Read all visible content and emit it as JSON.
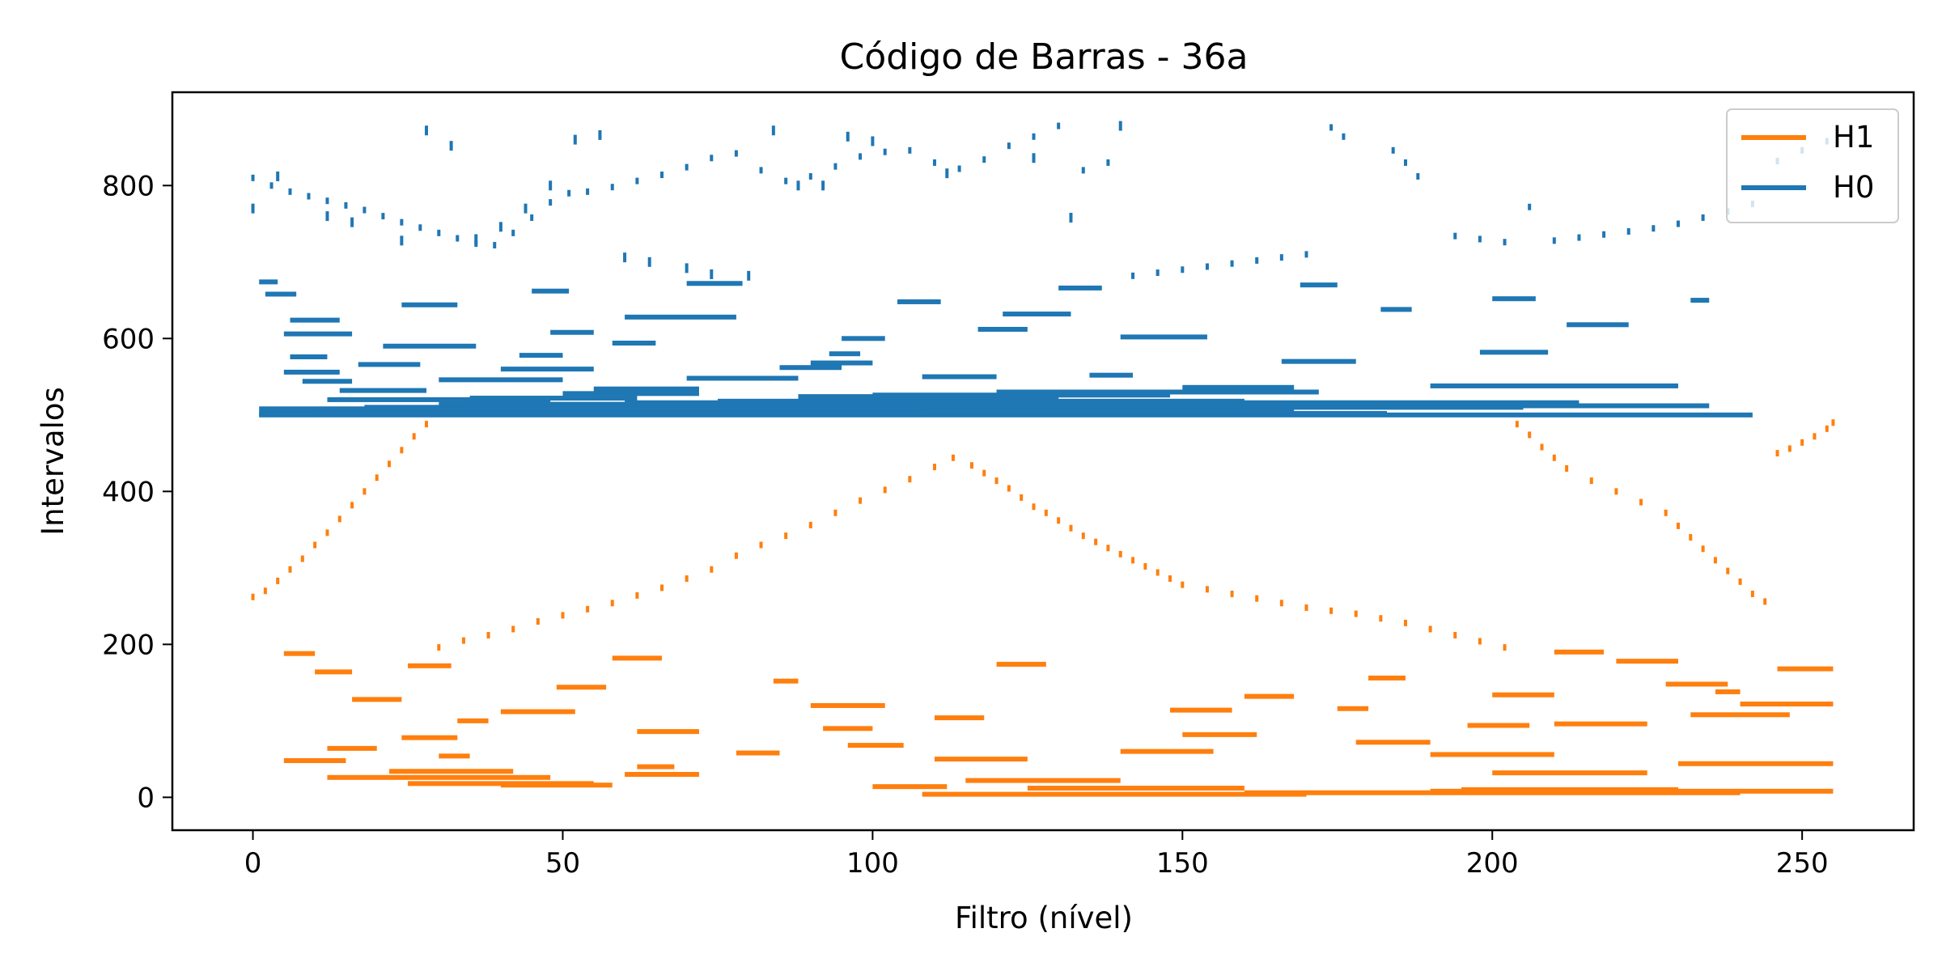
{
  "chart_data": {
    "type": "barcode",
    "title": "Código de Barras - 36a",
    "xlabel": "Filtro (nível)",
    "ylabel": "Intervalos",
    "xlim": [
      -13,
      268
    ],
    "ylim": [
      -43,
      922
    ],
    "xticks": [
      0,
      50,
      100,
      150,
      200,
      250
    ],
    "yticks": [
      0,
      200,
      400,
      600,
      800
    ],
    "grid": false,
    "legend": {
      "placement": "top-right",
      "entries": [
        {
          "label": "H1",
          "color": "#ff7f0e"
        },
        {
          "label": "H0",
          "color": "#1f77b4"
        }
      ]
    },
    "series": [
      {
        "name": "H0",
        "color": "#1f77b4",
        "bars": [
          [
            1,
            242,
            500
          ],
          [
            1,
            183,
            502
          ],
          [
            10,
            155,
            504
          ],
          [
            20,
            168,
            506
          ],
          [
            1,
            108,
            508
          ],
          [
            18,
            205,
            510
          ],
          [
            40,
            235,
            512
          ],
          [
            30,
            180,
            514
          ],
          [
            60,
            214,
            516
          ],
          [
            75,
            160,
            518
          ],
          [
            12,
            48,
            520
          ],
          [
            35,
            62,
            522
          ],
          [
            88,
            130,
            524
          ],
          [
            100,
            148,
            526
          ],
          [
            50,
            72,
            528
          ],
          [
            120,
            172,
            530
          ],
          [
            14,
            28,
            532
          ],
          [
            55,
            72,
            534
          ],
          [
            150,
            168,
            536
          ],
          [
            190,
            230,
            538
          ],
          [
            8,
            16,
            544
          ],
          [
            30,
            50,
            546
          ],
          [
            70,
            88,
            548
          ],
          [
            108,
            120,
            550
          ],
          [
            135,
            142,
            552
          ],
          [
            5,
            14,
            556
          ],
          [
            40,
            55,
            560
          ],
          [
            85,
            95,
            562
          ],
          [
            17,
            27,
            566
          ],
          [
            90,
            100,
            568
          ],
          [
            166,
            178,
            570
          ],
          [
            6,
            12,
            576
          ],
          [
            43,
            50,
            578
          ],
          [
            93,
            98,
            580
          ],
          [
            198,
            209,
            582
          ],
          [
            21,
            36,
            590
          ],
          [
            58,
            65,
            594
          ],
          [
            95,
            102,
            600
          ],
          [
            140,
            154,
            602
          ],
          [
            5,
            16,
            606
          ],
          [
            48,
            55,
            608
          ],
          [
            117,
            125,
            612
          ],
          [
            212,
            222,
            618
          ],
          [
            6,
            14,
            624
          ],
          [
            60,
            78,
            628
          ],
          [
            121,
            132,
            632
          ],
          [
            182,
            187,
            638
          ],
          [
            24,
            33,
            644
          ],
          [
            104,
            111,
            648
          ],
          [
            200,
            207,
            652
          ],
          [
            2,
            7,
            658
          ],
          [
            45,
            51,
            662
          ],
          [
            130,
            137,
            666
          ],
          [
            169,
            175,
            670
          ],
          [
            1,
            4,
            674
          ],
          [
            70,
            79,
            672
          ],
          [
            232,
            235,
            650
          ]
        ]
      },
      {
        "name": "H1",
        "color": "#ff7f0e",
        "bars": [
          [
            108,
            170,
            4
          ],
          [
            160,
            240,
            6
          ],
          [
            190,
            255,
            8
          ],
          [
            195,
            230,
            10
          ],
          [
            125,
            160,
            12
          ],
          [
            100,
            112,
            14
          ],
          [
            40,
            58,
            16
          ],
          [
            25,
            55,
            18
          ],
          [
            115,
            140,
            22
          ],
          [
            12,
            48,
            26
          ],
          [
            60,
            72,
            30
          ],
          [
            200,
            225,
            32
          ],
          [
            22,
            42,
            34
          ],
          [
            62,
            68,
            40
          ],
          [
            230,
            255,
            44
          ],
          [
            5,
            15,
            48
          ],
          [
            110,
            125,
            50
          ],
          [
            30,
            35,
            54
          ],
          [
            190,
            210,
            56
          ],
          [
            78,
            85,
            58
          ],
          [
            140,
            155,
            60
          ],
          [
            12,
            20,
            64
          ],
          [
            96,
            105,
            68
          ],
          [
            178,
            190,
            72
          ],
          [
            24,
            33,
            78
          ],
          [
            150,
            162,
            82
          ],
          [
            62,
            72,
            86
          ],
          [
            92,
            100,
            90
          ],
          [
            196,
            206,
            94
          ],
          [
            210,
            225,
            96
          ],
          [
            33,
            38,
            100
          ],
          [
            110,
            118,
            104
          ],
          [
            232,
            248,
            108
          ],
          [
            40,
            52,
            112
          ],
          [
            148,
            158,
            114
          ],
          [
            175,
            180,
            116
          ],
          [
            90,
            102,
            120
          ],
          [
            240,
            255,
            122
          ],
          [
            16,
            24,
            128
          ],
          [
            160,
            168,
            132
          ],
          [
            200,
            210,
            134
          ],
          [
            236,
            240,
            138
          ],
          [
            49,
            57,
            144
          ],
          [
            228,
            238,
            148
          ],
          [
            84,
            88,
            152
          ],
          [
            180,
            186,
            156
          ],
          [
            10,
            16,
            164
          ],
          [
            246,
            255,
            168
          ],
          [
            25,
            32,
            172
          ],
          [
            120,
            128,
            174
          ],
          [
            220,
            230,
            178
          ],
          [
            58,
            66,
            182
          ],
          [
            5,
            10,
            188
          ],
          [
            210,
            218,
            190
          ]
        ],
        "diag_points": [
          [
            0,
            262
          ],
          [
            2,
            270
          ],
          [
            4,
            283
          ],
          [
            6,
            298
          ],
          [
            8,
            312
          ],
          [
            10,
            330
          ],
          [
            12,
            346
          ],
          [
            14,
            364
          ],
          [
            16,
            382
          ],
          [
            18,
            400
          ],
          [
            20,
            418
          ],
          [
            22,
            436
          ],
          [
            24,
            454
          ],
          [
            26,
            472
          ],
          [
            28,
            488
          ],
          [
            30,
            196
          ],
          [
            34,
            205
          ],
          [
            38,
            212
          ],
          [
            42,
            220
          ],
          [
            46,
            230
          ],
          [
            50,
            238
          ],
          [
            54,
            246
          ],
          [
            58,
            254
          ],
          [
            62,
            264
          ],
          [
            66,
            274
          ],
          [
            70,
            286
          ],
          [
            74,
            298
          ],
          [
            78,
            316
          ],
          [
            82,
            330
          ],
          [
            86,
            342
          ],
          [
            90,
            356
          ],
          [
            94,
            372
          ],
          [
            98,
            388
          ],
          [
            102,
            402
          ],
          [
            106,
            416
          ],
          [
            110,
            432
          ],
          [
            113,
            444
          ],
          [
            116,
            434
          ],
          [
            118,
            424
          ],
          [
            120,
            414
          ],
          [
            122,
            404
          ],
          [
            124,
            392
          ],
          [
            126,
            380
          ],
          [
            128,
            372
          ],
          [
            130,
            362
          ],
          [
            132,
            352
          ],
          [
            134,
            342
          ],
          [
            136,
            334
          ],
          [
            138,
            326
          ],
          [
            140,
            318
          ],
          [
            142,
            310
          ],
          [
            144,
            302
          ],
          [
            146,
            294
          ],
          [
            148,
            286
          ],
          [
            150,
            278
          ],
          [
            154,
            272
          ],
          [
            158,
            266
          ],
          [
            162,
            260
          ],
          [
            166,
            254
          ],
          [
            170,
            248
          ],
          [
            174,
            244
          ],
          [
            178,
            240
          ],
          [
            182,
            234
          ],
          [
            186,
            228
          ],
          [
            190,
            220
          ],
          [
            194,
            212
          ],
          [
            198,
            204
          ],
          [
            202,
            196
          ],
          [
            204,
            488
          ],
          [
            206,
            474
          ],
          [
            208,
            458
          ],
          [
            210,
            444
          ],
          [
            212,
            430
          ],
          [
            216,
            414
          ],
          [
            220,
            400
          ],
          [
            224,
            386
          ],
          [
            228,
            372
          ],
          [
            230,
            355
          ],
          [
            232,
            340
          ],
          [
            234,
            325
          ],
          [
            236,
            310
          ],
          [
            238,
            296
          ],
          [
            240,
            282
          ],
          [
            242,
            266
          ],
          [
            244,
            256
          ],
          [
            246,
            450
          ],
          [
            248,
            456
          ],
          [
            250,
            464
          ],
          [
            252,
            472
          ],
          [
            254,
            482
          ],
          [
            255,
            490
          ]
        ]
      },
      {
        "name": "H0",
        "color": "#1f77b4",
        "diag_points": [
          [
            0,
            810
          ],
          [
            3,
            800
          ],
          [
            6,
            792
          ],
          [
            9,
            786
          ],
          [
            12,
            780
          ],
          [
            15,
            774
          ],
          [
            18,
            768
          ],
          [
            21,
            760
          ],
          [
            24,
            752
          ],
          [
            27,
            745
          ],
          [
            30,
            738
          ],
          [
            33,
            731
          ],
          [
            36,
            724
          ],
          [
            39,
            722
          ],
          [
            42,
            738
          ],
          [
            45,
            758
          ],
          [
            48,
            778
          ],
          [
            51,
            790
          ],
          [
            54,
            792
          ],
          [
            58,
            798
          ],
          [
            62,
            806
          ],
          [
            66,
            814
          ],
          [
            70,
            824
          ],
          [
            74,
            836
          ],
          [
            78,
            842
          ],
          [
            82,
            820
          ],
          [
            86,
            806
          ],
          [
            90,
            812
          ],
          [
            94,
            825
          ],
          [
            98,
            838
          ],
          [
            102,
            844
          ],
          [
            106,
            846
          ],
          [
            110,
            830
          ],
          [
            114,
            822
          ],
          [
            118,
            834
          ],
          [
            122,
            852
          ],
          [
            126,
            864
          ],
          [
            130,
            878
          ],
          [
            134,
            820
          ],
          [
            138,
            830
          ],
          [
            142,
            682
          ],
          [
            146,
            686
          ],
          [
            150,
            690
          ],
          [
            154,
            694
          ],
          [
            158,
            698
          ],
          [
            162,
            702
          ],
          [
            166,
            706
          ],
          [
            170,
            710
          ],
          [
            174,
            876
          ],
          [
            176,
            864
          ],
          [
            184,
            846
          ],
          [
            186,
            830
          ],
          [
            188,
            812
          ],
          [
            194,
            734
          ],
          [
            198,
            730
          ],
          [
            202,
            726
          ],
          [
            206,
            772
          ],
          [
            210,
            728
          ],
          [
            214,
            732
          ],
          [
            218,
            736
          ],
          [
            222,
            740
          ],
          [
            226,
            744
          ],
          [
            230,
            750
          ],
          [
            234,
            758
          ],
          [
            238,
            766
          ],
          [
            242,
            776
          ],
          [
            246,
            832
          ],
          [
            250,
            846
          ],
          [
            254,
            858
          ]
        ],
        "extra_points": [
          [
            0,
            770
          ],
          [
            4,
            812
          ],
          [
            12,
            760
          ],
          [
            16,
            752
          ],
          [
            24,
            728
          ],
          [
            28,
            872
          ],
          [
            32,
            852
          ],
          [
            36,
            730
          ],
          [
            40,
            746
          ],
          [
            44,
            770
          ],
          [
            48,
            800
          ],
          [
            52,
            860
          ],
          [
            56,
            866
          ],
          [
            60,
            706
          ],
          [
            64,
            700
          ],
          [
            70,
            692
          ],
          [
            74,
            684
          ],
          [
            80,
            682
          ],
          [
            84,
            872
          ],
          [
            88,
            800
          ],
          [
            92,
            800
          ],
          [
            96,
            864
          ],
          [
            100,
            858
          ],
          [
            112,
            816
          ],
          [
            126,
            836
          ],
          [
            132,
            758
          ],
          [
            140,
            878
          ]
        ]
      }
    ]
  }
}
